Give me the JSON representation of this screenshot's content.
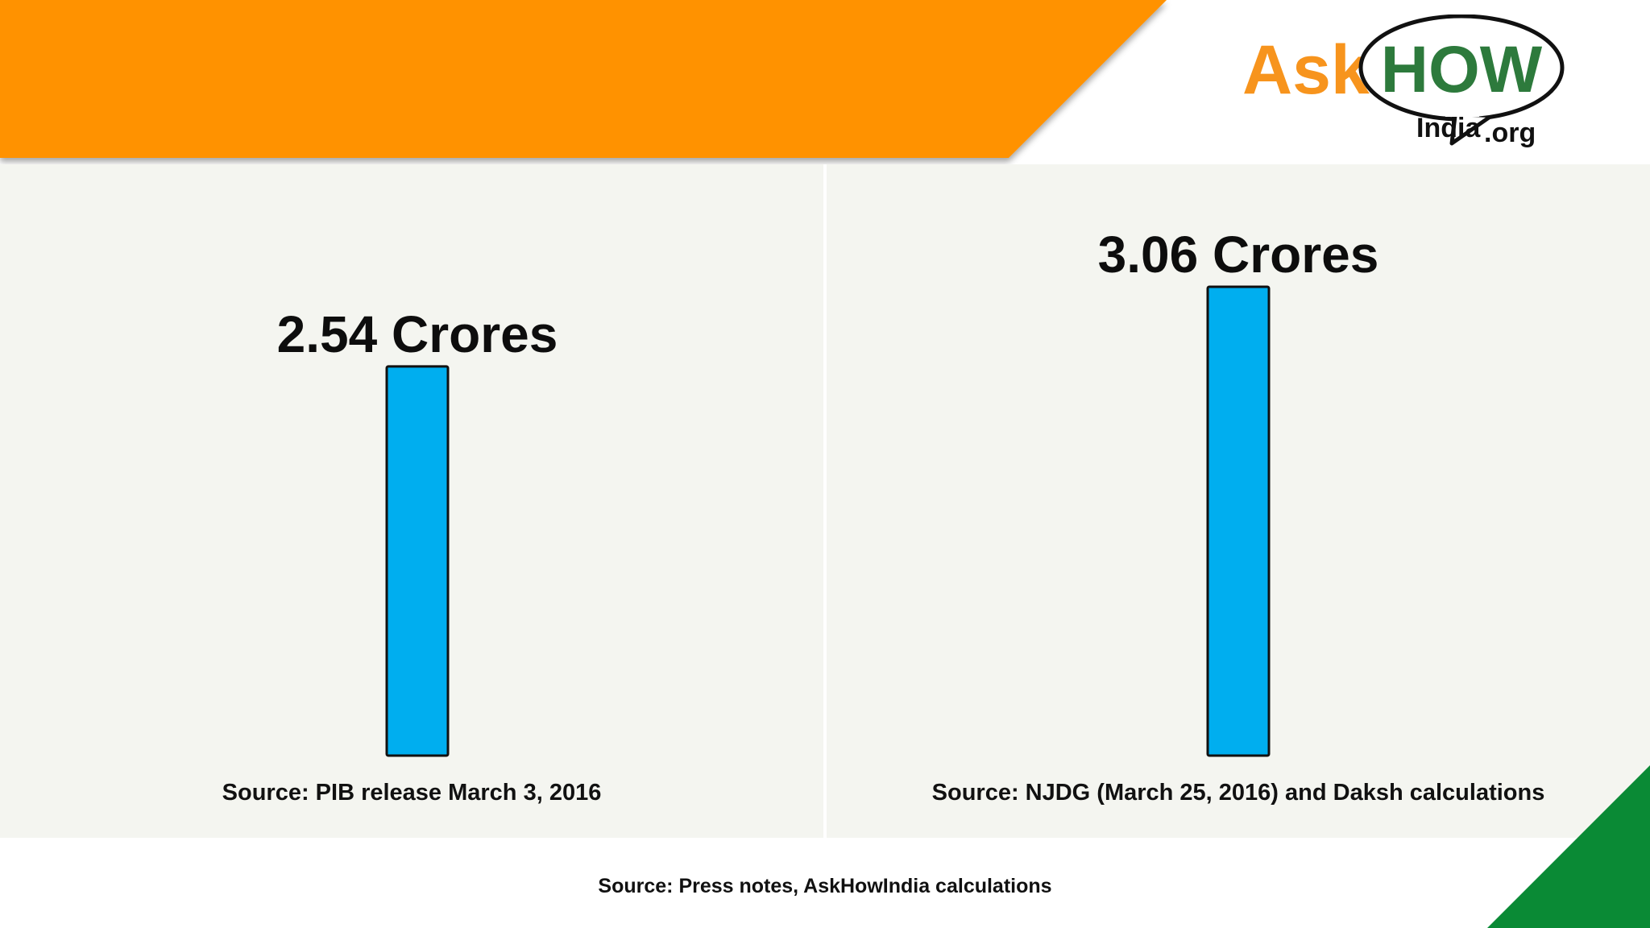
{
  "logo": {
    "ask": "Ask",
    "how": "HOW",
    "india": "India",
    "org": ".org"
  },
  "colors": {
    "banner": "#ff9200",
    "bar": "#00aeef",
    "panel": "#f4f5f0",
    "corner_green": "#0a8a35",
    "logo_orange": "#f7941d",
    "logo_green": "#2d7a3c"
  },
  "chart_data": [
    {
      "type": "bar",
      "categories": [
        ""
      ],
      "values": [
        2.54
      ],
      "data_labels": [
        "2.54 Crores"
      ],
      "ylim": [
        0,
        3.06
      ],
      "source": "Source: PIB release March 3, 2016"
    },
    {
      "type": "bar",
      "categories": [
        ""
      ],
      "values": [
        3.06
      ],
      "data_labels": [
        "3.06 Crores"
      ],
      "ylim": [
        0,
        3.06
      ],
      "source": "Source: NJDG (March 25, 2016) and Daksh calculations"
    }
  ],
  "footer": {
    "note": "Source: Press notes, AskHowIndia calculations"
  }
}
